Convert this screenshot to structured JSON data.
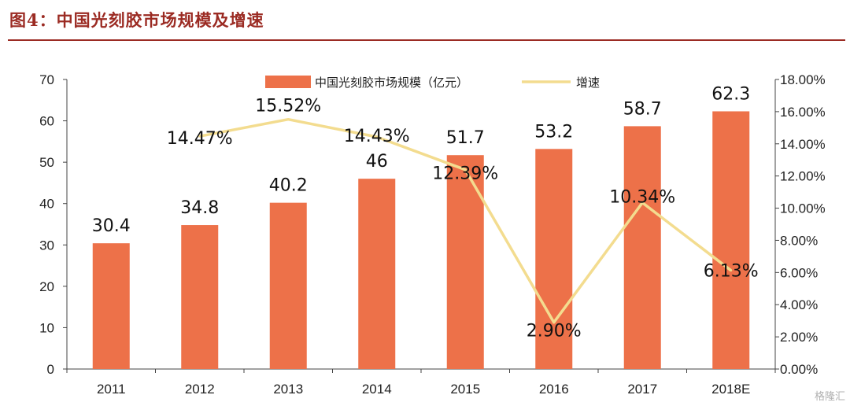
{
  "header": {
    "title": "图4：中国光刻胶市场规模及增速"
  },
  "watermark": "格隆汇",
  "colors": {
    "bar": "#ed7149",
    "line": "#f3dc8f",
    "title": "#9b2b23"
  },
  "chart_data": {
    "type": "bar",
    "categories": [
      "2011",
      "2012",
      "2013",
      "2014",
      "2015",
      "2016",
      "2017",
      "2018E"
    ],
    "series": [
      {
        "name": "中国光刻胶市场规模（亿元）",
        "type": "bar",
        "axis": "left",
        "values": [
          30.4,
          34.8,
          40.2,
          46,
          51.7,
          53.2,
          58.7,
          62.3
        ],
        "labels": [
          "30.4",
          "34.8",
          "40.2",
          "46",
          "51.7",
          "53.2",
          "58.7",
          "62.3"
        ]
      },
      {
        "name": "增速",
        "type": "line",
        "axis": "right",
        "values": [
          null,
          14.47,
          15.52,
          14.43,
          12.39,
          2.9,
          10.34,
          6.13
        ],
        "labels": [
          "",
          "14.47%",
          "15.52%",
          "14.43%",
          "12.39%",
          "2.90%",
          "10.34%",
          "6.13%"
        ]
      }
    ],
    "y_left": {
      "ylim": [
        0,
        70
      ],
      "ticks": [
        "0",
        "10",
        "20",
        "30",
        "40",
        "50",
        "60",
        "70"
      ]
    },
    "y_right": {
      "ylim": [
        0,
        18
      ],
      "ticks": [
        "0.00%",
        "2.00%",
        "4.00%",
        "6.00%",
        "8.00%",
        "10.00%",
        "12.00%",
        "14.00%",
        "16.00%",
        "18.00%"
      ]
    },
    "legend": {
      "position": "top"
    },
    "grid": false
  }
}
